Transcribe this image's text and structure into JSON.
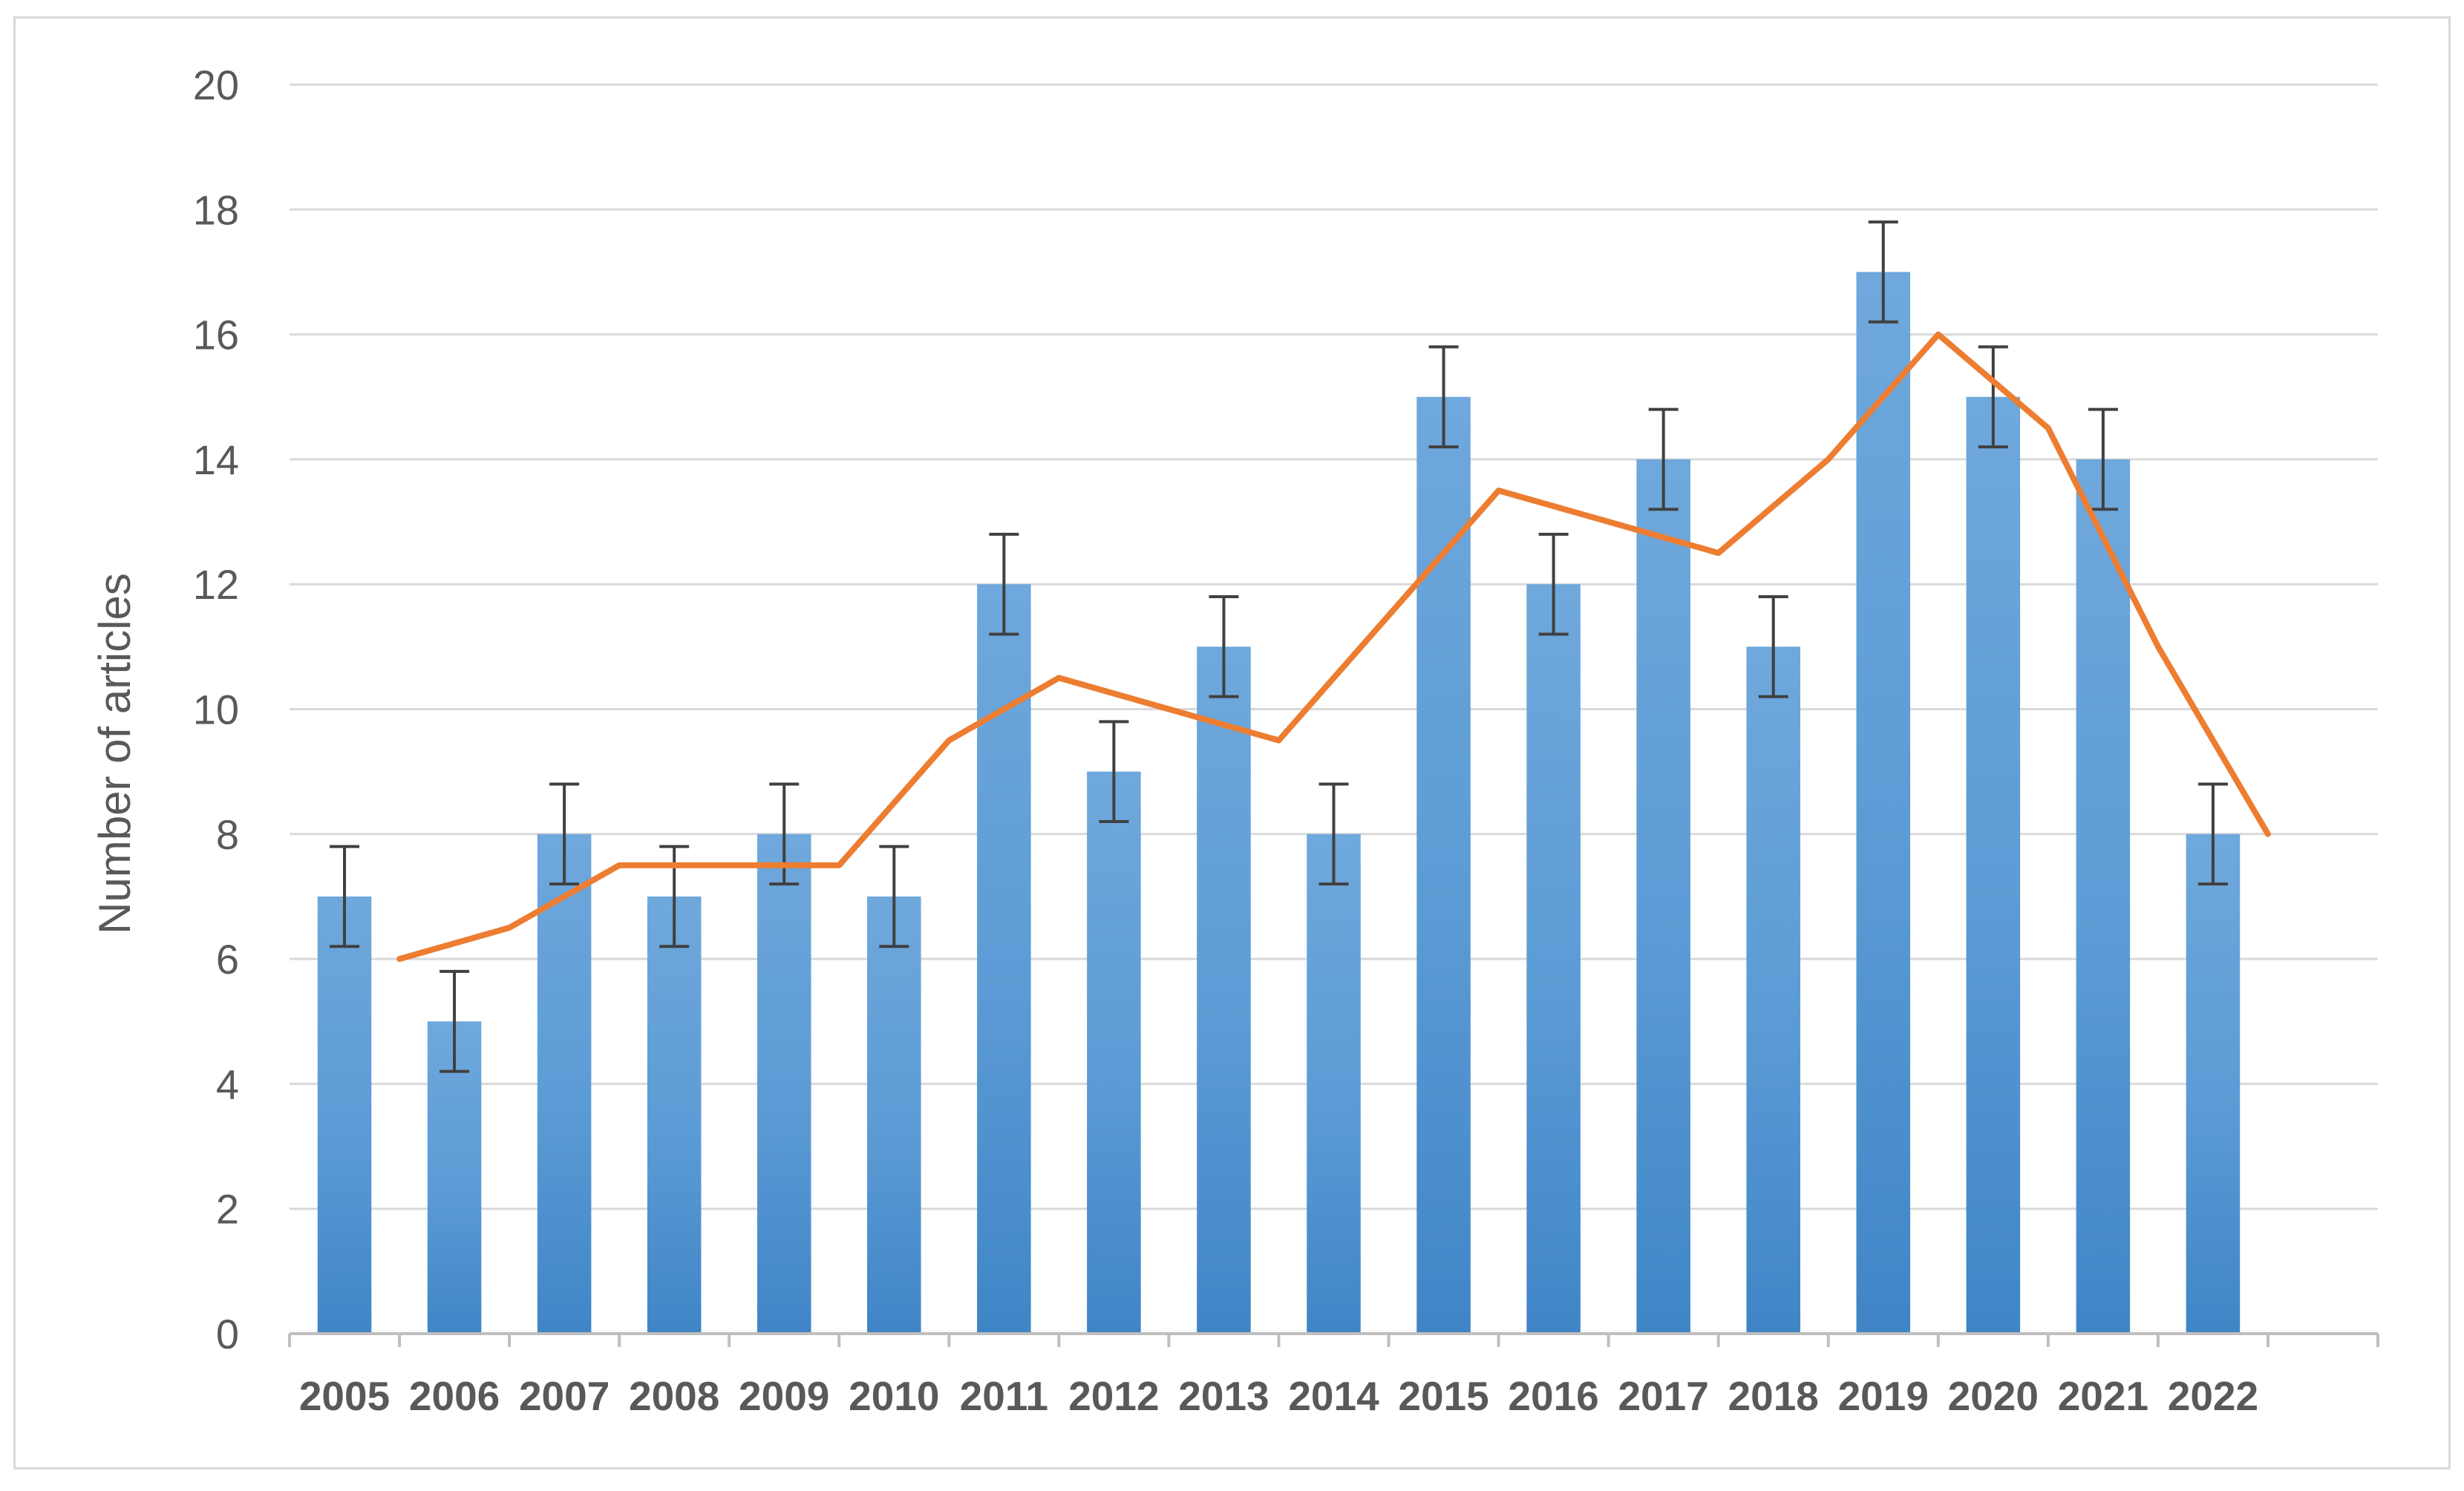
{
  "chart_data": {
    "type": "bar",
    "categories": [
      "2005",
      "2006",
      "2007",
      "2008",
      "2009",
      "2010",
      "2011",
      "2012",
      "2013",
      "2014",
      "2015",
      "2016",
      "2017",
      "2018",
      "2019",
      "2020",
      "2021",
      "2022"
    ],
    "series": [
      {
        "values": [
          7,
          5,
          8,
          7,
          8,
          7,
          12,
          9,
          11,
          8,
          15,
          12,
          14,
          11,
          17,
          15,
          14,
          8
        ],
        "error_plus_minus": [
          0.8,
          0.8,
          0.8,
          0.8,
          0.8,
          0.8,
          0.8,
          0.8,
          0.8,
          0.8,
          0.8,
          0.8,
          0.8,
          0.8,
          0.8,
          0.8,
          0.8,
          0.8
        ],
        "color": "#5B9BD5"
      },
      {
        "type": "line",
        "x_positions_in_categories": [
          1.5,
          2.5,
          3.5,
          4.5,
          5.5,
          6.5,
          7.5,
          8.5,
          9.5,
          10.5,
          11.5,
          12.5,
          13.5,
          14.5,
          15.5,
          16.5,
          17.5,
          18.5
        ],
        "values": [
          6,
          6.5,
          7.5,
          7.5,
          7.5,
          9.5,
          10.5,
          10,
          9.5,
          11.5,
          13.5,
          13,
          12.5,
          14,
          16,
          14.5,
          11,
          8
        ],
        "color": "#ED7D31"
      }
    ],
    "ylabel": "Number of articles",
    "xlabel": "",
    "title": "",
    "ylim": [
      0,
      20
    ],
    "yticks": [
      0,
      2,
      4,
      6,
      8,
      10,
      12,
      14,
      16,
      18,
      20
    ],
    "grid": "horizontal",
    "legend": "none"
  }
}
